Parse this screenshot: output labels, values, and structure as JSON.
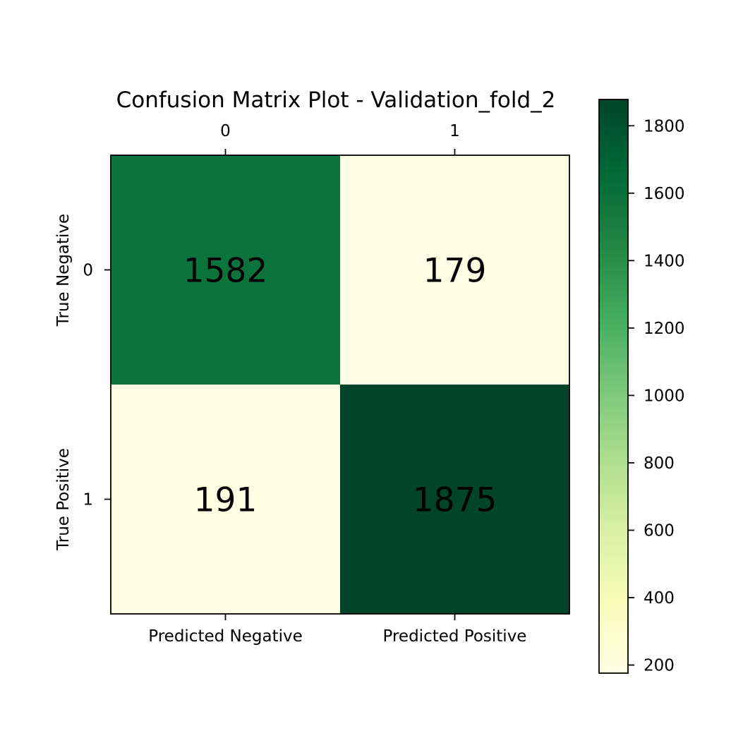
{
  "chart_data": {
    "type": "heatmap",
    "title": "Confusion Matrix Plot - Validation_fold_2",
    "x_top_ticks": [
      "0",
      "1"
    ],
    "x_bottom_ticks": [
      "Predicted Negative",
      "Predicted Positive"
    ],
    "y_ticks": [
      "0",
      "1"
    ],
    "y_labels": [
      "True Negative",
      "True Positive"
    ],
    "matrix": [
      [
        1582,
        179
      ],
      [
        191,
        1875
      ]
    ],
    "matrix_labels": [
      [
        "1582",
        "179"
      ],
      [
        "191",
        "1875"
      ]
    ],
    "colormap": "YlGn",
    "vmin": 179,
    "vmax": 1875,
    "colorbar_ticks": [
      200,
      400,
      600,
      800,
      1000,
      1200,
      1400,
      1600,
      1800
    ],
    "colorbar_tick_labels": [
      "200",
      "400",
      "600",
      "800",
      "1000",
      "1200",
      "1400",
      "1600",
      "1800"
    ]
  }
}
